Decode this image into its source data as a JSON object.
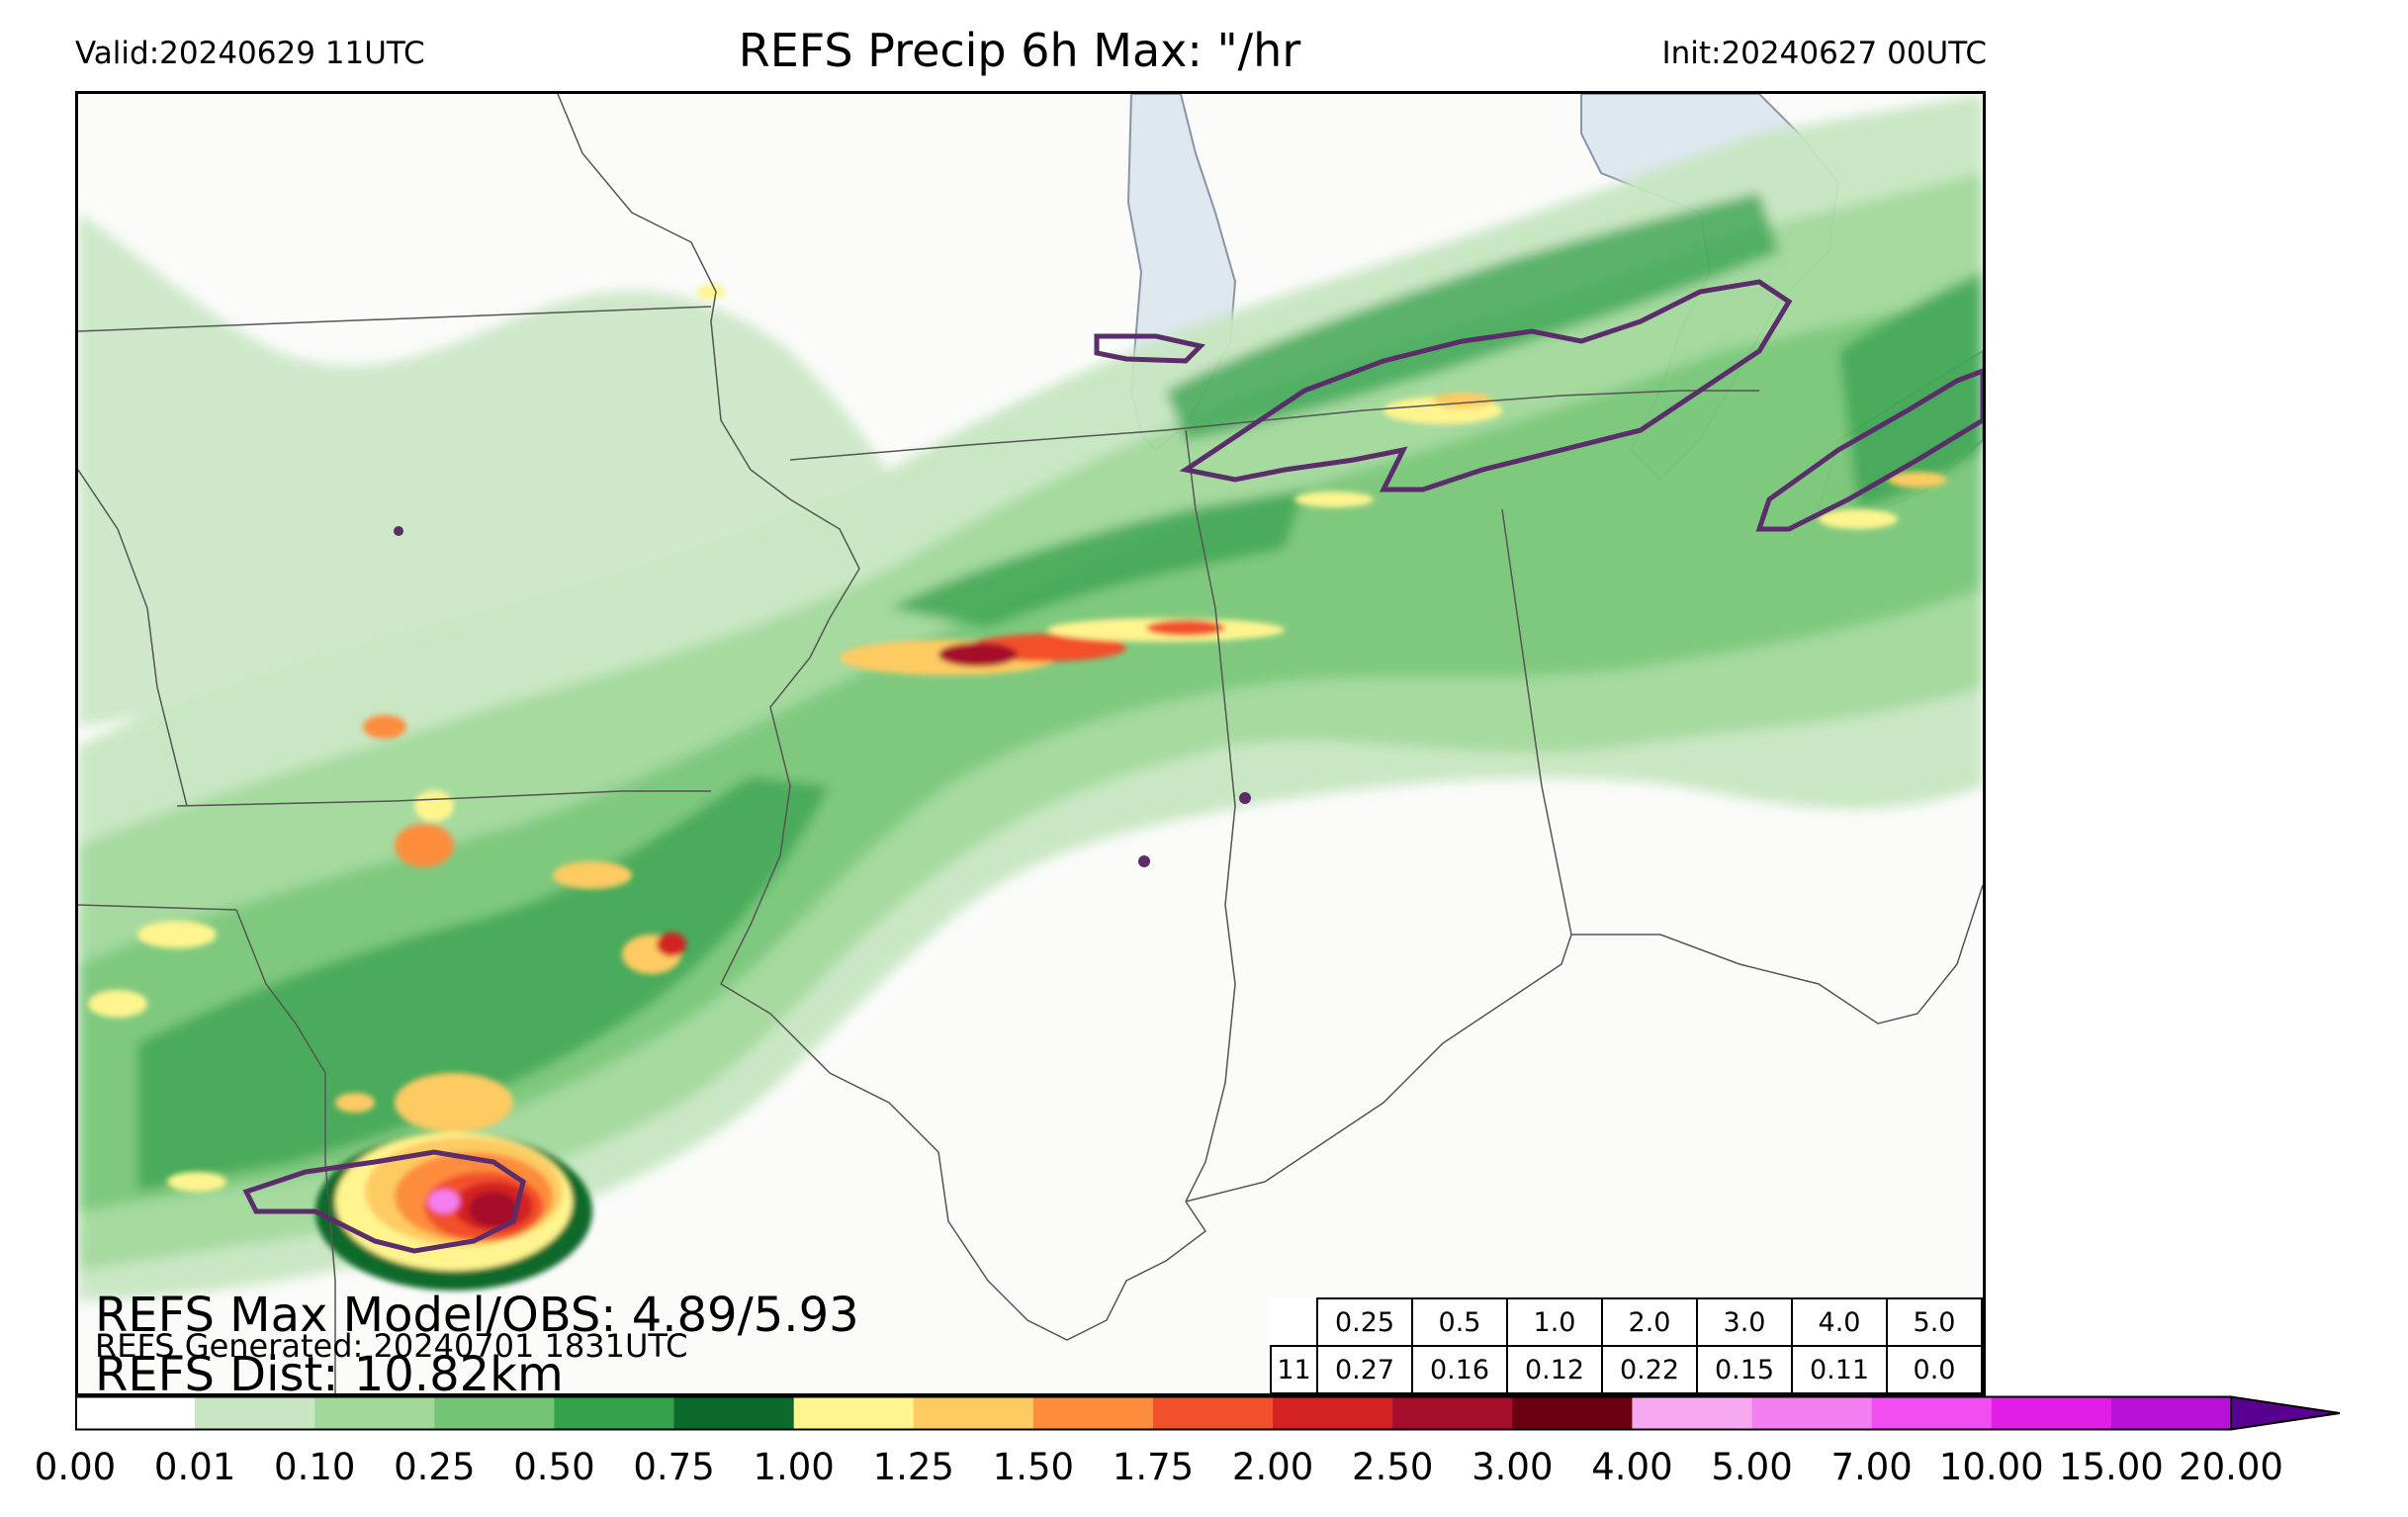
{
  "header": {
    "valid": "Valid:20240629 11UTC",
    "title": "REFS Precip 6h Max: \"/hr",
    "init": "Init:20240627 00UTC"
  },
  "stats": {
    "max_model_obs": "REFS Max Model/OBS: 4.89/5.93",
    "generated": "REFS Generated: 20240701 1831UTC",
    "dist": "REFS Dist: 10.82km"
  },
  "threshold_table": {
    "thresholds": [
      "0.25",
      "0.5",
      "1.0",
      "2.0",
      "3.0",
      "4.0",
      "5.0"
    ],
    "row_label": "11",
    "scores": [
      "0.27",
      "0.16",
      "0.12",
      "0.22",
      "0.15",
      "0.11",
      "0.0"
    ]
  },
  "colorbar": {
    "tick_labels": [
      "0.00",
      "0.01",
      "0.10",
      "0.25",
      "0.50",
      "0.75",
      "1.00",
      "1.25",
      "1.50",
      "1.75",
      "2.00",
      "2.50",
      "3.00",
      "4.00",
      "5.00",
      "7.00",
      "10.00",
      "15.00",
      "20.00"
    ],
    "colors": [
      "#ffffff",
      "#c7e6c1",
      "#a2d99b",
      "#74c476",
      "#35a14b",
      "#0b6a2c",
      "#fff48e",
      "#fdcb62",
      "#fd8d3c",
      "#f2502c",
      "#d42222",
      "#a50f2c",
      "#6b0010",
      "#f6a8f0",
      "#f37ef0",
      "#f24df0",
      "#e11ee8",
      "#b812d8",
      "#8a05c0"
    ],
    "extend_color": "#5a0090"
  },
  "map": {
    "background": "#fbfbfa",
    "border_color": "#555555",
    "obs_contour_color": "#5b2d6b",
    "lake_color": "#dfe7ef"
  }
}
